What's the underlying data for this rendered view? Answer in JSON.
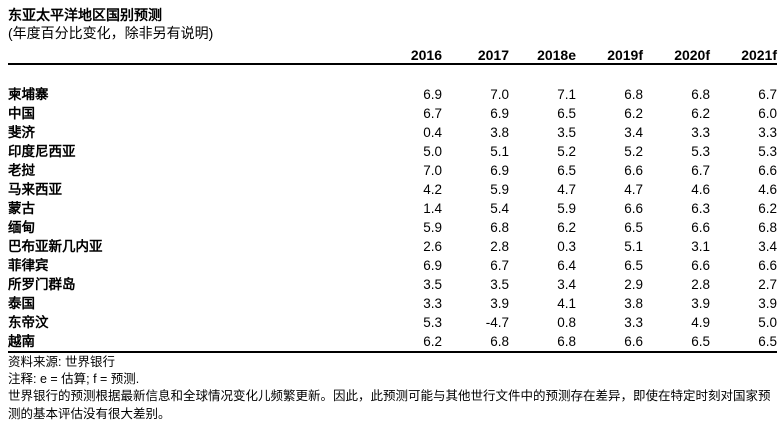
{
  "chart_data": {
    "type": "table",
    "title": "东亚太平洋地区国别预测",
    "subtitle": "(年度百分比变化，除非另有说明)",
    "columns": [
      "2016",
      "2017",
      "2018e",
      "2019f",
      "2020f",
      "2021f"
    ],
    "rows": [
      {
        "country": "柬埔寨",
        "values": [
          "6.9",
          "7.0",
          "7.1",
          "6.8",
          "6.8",
          "6.7"
        ]
      },
      {
        "country": "中国",
        "values": [
          "6.7",
          "6.9",
          "6.5",
          "6.2",
          "6.2",
          "6.0"
        ]
      },
      {
        "country": "斐济",
        "values": [
          "0.4",
          "3.8",
          "3.5",
          "3.4",
          "3.3",
          "3.3"
        ]
      },
      {
        "country": "印度尼西亚",
        "values": [
          "5.0",
          "5.1",
          "5.2",
          "5.2",
          "5.3",
          "5.3"
        ]
      },
      {
        "country": "老挝",
        "values": [
          "7.0",
          "6.9",
          "6.5",
          "6.6",
          "6.7",
          "6.6"
        ]
      },
      {
        "country": "马来西亚",
        "values": [
          "4.2",
          "5.9",
          "4.7",
          "4.7",
          "4.6",
          "4.6"
        ]
      },
      {
        "country": "蒙古",
        "values": [
          "1.4",
          "5.4",
          "5.9",
          "6.6",
          "6.3",
          "6.2"
        ]
      },
      {
        "country": "缅甸",
        "values": [
          "5.9",
          "6.8",
          "6.2",
          "6.5",
          "6.6",
          "6.8"
        ]
      },
      {
        "country": "巴布亚新几内亚",
        "values": [
          "2.6",
          "2.8",
          "0.3",
          "5.1",
          "3.1",
          "3.4"
        ]
      },
      {
        "country": "菲律宾",
        "values": [
          "6.9",
          "6.7",
          "6.4",
          "6.5",
          "6.6",
          "6.6"
        ]
      },
      {
        "country": "所罗门群岛",
        "values": [
          "3.5",
          "3.5",
          "3.4",
          "2.9",
          "2.8",
          "2.7"
        ]
      },
      {
        "country": "泰国",
        "values": [
          "3.3",
          "3.9",
          "4.1",
          "3.8",
          "3.9",
          "3.9"
        ]
      },
      {
        "country": "东帝汶",
        "values": [
          "5.3",
          "-4.7",
          "0.8",
          "3.3",
          "4.9",
          "5.0"
        ]
      },
      {
        "country": "越南",
        "values": [
          "6.2",
          "6.8",
          "6.8",
          "6.6",
          "6.5",
          "6.5"
        ]
      }
    ]
  },
  "footer": {
    "source": "资料来源: 世界银行",
    "note": "注释: e = 估算; f = 预测.",
    "disclaimer": "世界银行的预测根据最新信息和全球情况变化儿频繁更新。因此，此预测可能与其他世行文件中的预测存在差异，即使在特定时刻对国家预测的基本评估没有很大差别。"
  },
  "colors": {
    "text": "#000000",
    "background": "#ffffff",
    "rule": "#000000"
  }
}
